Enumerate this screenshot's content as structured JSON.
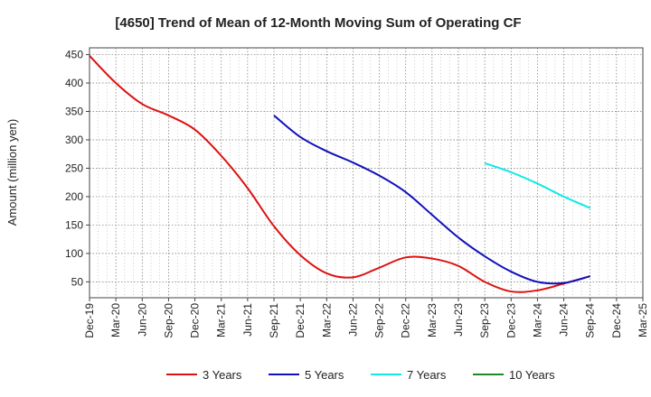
{
  "chart_data": {
    "type": "line",
    "title": "[4650]  Trend of Mean of 12-Month Moving Sum of Operating CF",
    "ylabel": "Amount (million yen)",
    "xlabel": "",
    "ylim": [
      22,
      462
    ],
    "yticks": [
      50,
      100,
      150,
      200,
      250,
      300,
      350,
      400,
      450
    ],
    "categories": [
      "Dec-19",
      "Mar-20",
      "Jun-20",
      "Sep-20",
      "Dec-20",
      "Mar-21",
      "Jun-21",
      "Sep-21",
      "Dec-21",
      "Mar-22",
      "Jun-22",
      "Sep-22",
      "Dec-22",
      "Mar-23",
      "Jun-23",
      "Sep-23",
      "Dec-23",
      "Mar-24",
      "Jun-24",
      "Sep-24",
      "Dec-24",
      "Mar-25"
    ],
    "grid": true,
    "legend_position": "bottom",
    "series": [
      {
        "name": "3 Years",
        "color": "#dd1111",
        "values": [
          448,
          400,
          363,
          343,
          318,
          272,
          215,
          148,
          97,
          65,
          58,
          75,
          93,
          91,
          78,
          50,
          33,
          35,
          47,
          60,
          null,
          null
        ]
      },
      {
        "name": "5 Years",
        "color": "#1111bb",
        "values": [
          null,
          null,
          null,
          null,
          null,
          null,
          null,
          343,
          305,
          280,
          260,
          237,
          208,
          168,
          128,
          95,
          68,
          50,
          48,
          60,
          null,
          null
        ]
      },
      {
        "name": "7 Years",
        "color": "#11e8e8",
        "values": [
          null,
          null,
          null,
          null,
          null,
          null,
          null,
          null,
          null,
          null,
          null,
          null,
          null,
          null,
          null,
          259,
          243,
          223,
          200,
          180,
          null,
          null
        ]
      },
      {
        "name": "10 Years",
        "color": "#228822",
        "values": [
          null,
          null,
          null,
          null,
          null,
          null,
          null,
          null,
          null,
          null,
          null,
          null,
          null,
          null,
          null,
          null,
          null,
          null,
          null,
          null,
          null,
          null
        ]
      }
    ]
  }
}
